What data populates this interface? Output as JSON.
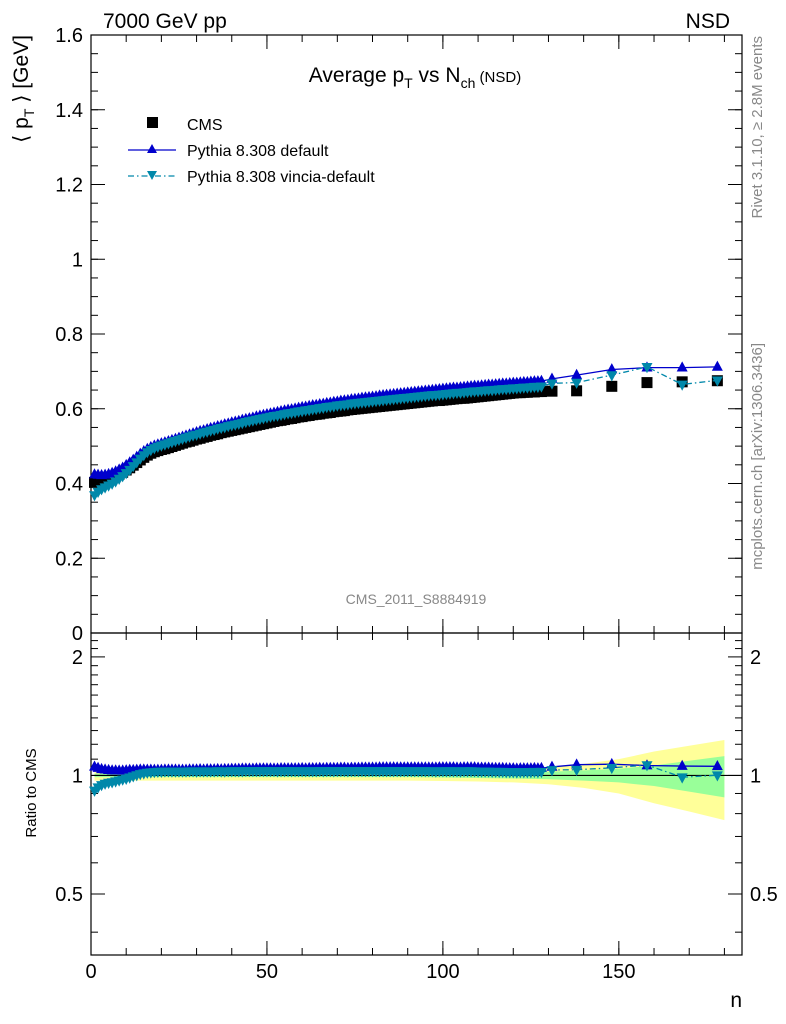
{
  "header": {
    "energy_label": "7000 GeV pp",
    "process_label": "NSD"
  },
  "side_labels": {
    "rivet": "Rivet 3.1.10, ≥ 2.8M events",
    "mcplots": "mcplots.cern.ch [arXiv:1306.3436]"
  },
  "chart_data": {
    "type": "scatter",
    "title": {
      "main": "Average p",
      "sub1": "T",
      "mid": " vs N",
      "sub2": "ch",
      "tail": " (NSD)"
    },
    "analysis_id": "CMS_2011_S8884919",
    "ylabel_main": {
      "pre": "⟨ p",
      "sub": "T",
      "post": " ⟩ [GeV]"
    },
    "ylabel_ratio": "Ratio to CMS",
    "xlabel": "n",
    "xlim": [
      0,
      185
    ],
    "ylim": [
      0,
      1.6
    ],
    "ratio_ylim": [
      0.35,
      2.3
    ],
    "x_ticks": [
      "0",
      "50",
      "100",
      "150"
    ],
    "y_ticks": [
      "0",
      "0.2",
      "0.4",
      "0.6",
      "0.8",
      "1",
      "1.2",
      "1.4",
      "1.6"
    ],
    "ratio_ticks": [
      "0.5",
      "1",
      "2"
    ],
    "legend_position": "top-left",
    "series": [
      {
        "name": "CMS",
        "marker": "square",
        "color": "#000000",
        "x": [
          1,
          2,
          3,
          4,
          5,
          6,
          7,
          8,
          9,
          10,
          11,
          12,
          13,
          14,
          15,
          16,
          17,
          18,
          19,
          20,
          21,
          22,
          23,
          24,
          25,
          26,
          27,
          28,
          29,
          30,
          31,
          32,
          33,
          34,
          35,
          36,
          37,
          38,
          39,
          40,
          41,
          42,
          43,
          44,
          45,
          46,
          47,
          48,
          49,
          50,
          51,
          52,
          53,
          54,
          55,
          56,
          57,
          58,
          59,
          60,
          61,
          62,
          63,
          64,
          65,
          66,
          67,
          68,
          69,
          70,
          71,
          72,
          73,
          74,
          75,
          76,
          77,
          78,
          79,
          80,
          81,
          82,
          83,
          84,
          85,
          86,
          87,
          88,
          89,
          90,
          91,
          92,
          93,
          94,
          95,
          96,
          97,
          98,
          99,
          100,
          101,
          102,
          103,
          104,
          105,
          106,
          107,
          108,
          109,
          110,
          111,
          112,
          113,
          114,
          115,
          116,
          117,
          118,
          119,
          120,
          121,
          122,
          123,
          124,
          125,
          126,
          127,
          128,
          131,
          138,
          148,
          158,
          168,
          178
        ],
        "y": [
          0.403,
          0.405,
          0.407,
          0.409,
          0.412,
          0.416,
          0.42,
          0.425,
          0.43,
          0.436,
          0.442,
          0.449,
          0.456,
          0.463,
          0.47,
          0.476,
          0.481,
          0.485,
          0.488,
          0.491,
          0.493,
          0.496,
          0.499,
          0.502,
          0.505,
          0.508,
          0.511,
          0.513,
          0.516,
          0.519,
          0.521,
          0.524,
          0.526,
          0.529,
          0.531,
          0.533,
          0.536,
          0.538,
          0.54,
          0.542,
          0.544,
          0.546,
          0.548,
          0.55,
          0.552,
          0.554,
          0.556,
          0.558,
          0.56,
          0.562,
          0.564,
          0.566,
          0.568,
          0.569,
          0.571,
          0.573,
          0.574,
          0.576,
          0.578,
          0.579,
          0.581,
          0.582,
          0.584,
          0.585,
          0.586,
          0.588,
          0.589,
          0.59,
          0.592,
          0.593,
          0.594,
          0.595,
          0.597,
          0.598,
          0.599,
          0.6,
          0.601,
          0.602,
          0.603,
          0.604,
          0.605,
          0.606,
          0.607,
          0.608,
          0.609,
          0.61,
          0.611,
          0.612,
          0.613,
          0.614,
          0.615,
          0.616,
          0.617,
          0.618,
          0.619,
          0.62,
          0.621,
          0.622,
          0.622,
          0.623,
          0.624,
          0.625,
          0.626,
          0.627,
          0.628,
          0.628,
          0.629,
          0.63,
          0.631,
          0.632,
          0.633,
          0.634,
          0.635,
          0.636,
          0.637,
          0.638,
          0.639,
          0.64,
          0.641,
          0.642,
          0.643,
          0.643,
          0.644,
          0.644,
          0.645,
          0.645,
          0.646,
          0.646,
          0.647,
          0.648,
          0.66,
          0.67,
          0.672,
          0.675
        ]
      },
      {
        "name": "Pythia 8.308 default",
        "marker": "triangle-up",
        "line": "solid",
        "color": "#0000cc",
        "x": [
          1,
          2,
          3,
          4,
          5,
          6,
          7,
          8,
          9,
          10,
          11,
          12,
          13,
          14,
          15,
          16,
          17,
          18,
          19,
          20,
          21,
          22,
          23,
          24,
          25,
          26,
          27,
          28,
          29,
          30,
          31,
          32,
          33,
          34,
          35,
          36,
          37,
          38,
          39,
          40,
          41,
          42,
          43,
          44,
          45,
          46,
          47,
          48,
          49,
          50,
          51,
          52,
          53,
          54,
          55,
          56,
          57,
          58,
          59,
          60,
          61,
          62,
          63,
          64,
          65,
          66,
          67,
          68,
          69,
          70,
          71,
          72,
          73,
          74,
          75,
          76,
          77,
          78,
          79,
          80,
          81,
          82,
          83,
          84,
          85,
          86,
          87,
          88,
          89,
          90,
          91,
          92,
          93,
          94,
          95,
          96,
          97,
          98,
          99,
          100,
          101,
          102,
          103,
          104,
          105,
          106,
          107,
          108,
          109,
          110,
          111,
          112,
          113,
          114,
          115,
          116,
          117,
          118,
          119,
          120,
          121,
          122,
          123,
          124,
          125,
          126,
          127,
          128,
          131,
          138,
          148,
          158,
          168,
          178
        ],
        "y": [
          0.424,
          0.423,
          0.422,
          0.423,
          0.425,
          0.428,
          0.432,
          0.437,
          0.442,
          0.449,
          0.456,
          0.463,
          0.471,
          0.479,
          0.486,
          0.492,
          0.497,
          0.501,
          0.504,
          0.507,
          0.51,
          0.513,
          0.516,
          0.519,
          0.522,
          0.525,
          0.528,
          0.531,
          0.534,
          0.537,
          0.54,
          0.542,
          0.545,
          0.548,
          0.55,
          0.553,
          0.555,
          0.558,
          0.56,
          0.563,
          0.565,
          0.567,
          0.57,
          0.572,
          0.574,
          0.576,
          0.579,
          0.581,
          0.583,
          0.585,
          0.587,
          0.589,
          0.591,
          0.593,
          0.595,
          0.597,
          0.598,
          0.6,
          0.602,
          0.604,
          0.605,
          0.607,
          0.609,
          0.61,
          0.612,
          0.613,
          0.615,
          0.616,
          0.618,
          0.619,
          0.621,
          0.622,
          0.623,
          0.625,
          0.626,
          0.627,
          0.629,
          0.63,
          0.631,
          0.632,
          0.633,
          0.635,
          0.636,
          0.637,
          0.638,
          0.639,
          0.64,
          0.641,
          0.642,
          0.643,
          0.644,
          0.645,
          0.646,
          0.647,
          0.648,
          0.649,
          0.65,
          0.651,
          0.652,
          0.653,
          0.654,
          0.655,
          0.656,
          0.656,
          0.657,
          0.658,
          0.659,
          0.66,
          0.661,
          0.661,
          0.662,
          0.663,
          0.664,
          0.664,
          0.665,
          0.666,
          0.667,
          0.667,
          0.668,
          0.669,
          0.669,
          0.67,
          0.671,
          0.671,
          0.672,
          0.673,
          0.673,
          0.674,
          0.68,
          0.69,
          0.705,
          0.71,
          0.71,
          0.712
        ]
      },
      {
        "name": "Pythia 8.308 vincia-default",
        "marker": "triangle-down",
        "line": "dash-dot",
        "color": "#0088aa",
        "x": [
          1,
          2,
          3,
          4,
          5,
          6,
          7,
          8,
          9,
          10,
          11,
          12,
          13,
          14,
          15,
          16,
          17,
          18,
          19,
          20,
          21,
          22,
          23,
          24,
          25,
          26,
          27,
          28,
          29,
          30,
          31,
          32,
          33,
          34,
          35,
          36,
          37,
          38,
          39,
          40,
          41,
          42,
          43,
          44,
          45,
          46,
          47,
          48,
          49,
          50,
          51,
          52,
          53,
          54,
          55,
          56,
          57,
          58,
          59,
          60,
          61,
          62,
          63,
          64,
          65,
          66,
          67,
          68,
          69,
          70,
          71,
          72,
          73,
          74,
          75,
          76,
          77,
          78,
          79,
          80,
          81,
          82,
          83,
          84,
          85,
          86,
          87,
          88,
          89,
          90,
          91,
          92,
          93,
          94,
          95,
          96,
          97,
          98,
          99,
          100,
          101,
          102,
          103,
          104,
          105,
          106,
          107,
          108,
          109,
          110,
          111,
          112,
          113,
          114,
          115,
          116,
          117,
          118,
          119,
          120,
          121,
          122,
          123,
          124,
          125,
          126,
          127,
          128,
          131,
          138,
          148,
          158,
          168,
          178
        ],
        "y": [
          0.369,
          0.378,
          0.385,
          0.39,
          0.395,
          0.4,
          0.406,
          0.413,
          0.42,
          0.428,
          0.437,
          0.447,
          0.457,
          0.467,
          0.476,
          0.484,
          0.49,
          0.495,
          0.499,
          0.502,
          0.505,
          0.508,
          0.511,
          0.514,
          0.517,
          0.52,
          0.523,
          0.526,
          0.529,
          0.531,
          0.534,
          0.537,
          0.539,
          0.542,
          0.544,
          0.547,
          0.549,
          0.551,
          0.554,
          0.556,
          0.558,
          0.56,
          0.562,
          0.565,
          0.567,
          0.569,
          0.571,
          0.573,
          0.575,
          0.577,
          0.579,
          0.581,
          0.582,
          0.584,
          0.586,
          0.588,
          0.589,
          0.591,
          0.593,
          0.594,
          0.596,
          0.597,
          0.599,
          0.6,
          0.602,
          0.603,
          0.605,
          0.606,
          0.607,
          0.609,
          0.61,
          0.611,
          0.612,
          0.614,
          0.615,
          0.616,
          0.617,
          0.618,
          0.619,
          0.62,
          0.621,
          0.622,
          0.623,
          0.624,
          0.625,
          0.626,
          0.627,
          0.628,
          0.629,
          0.63,
          0.631,
          0.632,
          0.633,
          0.634,
          0.635,
          0.636,
          0.637,
          0.637,
          0.638,
          0.639,
          0.64,
          0.641,
          0.642,
          0.643,
          0.643,
          0.644,
          0.645,
          0.646,
          0.647,
          0.647,
          0.648,
          0.649,
          0.65,
          0.65,
          0.651,
          0.652,
          0.653,
          0.653,
          0.654,
          0.655,
          0.655,
          0.656,
          0.657,
          0.657,
          0.658,
          0.659,
          0.659,
          0.66,
          0.668,
          0.67,
          0.69,
          0.712,
          0.665,
          0.676
        ]
      }
    ],
    "ratio_bands": {
      "x": [
        1,
        10,
        20,
        30,
        40,
        50,
        60,
        70,
        80,
        90,
        100,
        110,
        120,
        130,
        140,
        150,
        160,
        170,
        180
      ],
      "green_halfwidth": [
        0.01,
        0.01,
        0.01,
        0.01,
        0.01,
        0.01,
        0.01,
        0.01,
        0.01,
        0.01,
        0.012,
        0.015,
        0.018,
        0.022,
        0.03,
        0.04,
        0.06,
        0.09,
        0.12
      ],
      "yellow_halfwidth": [
        0.03,
        0.03,
        0.03,
        0.03,
        0.03,
        0.03,
        0.03,
        0.03,
        0.03,
        0.03,
        0.032,
        0.035,
        0.04,
        0.05,
        0.07,
        0.1,
        0.15,
        0.19,
        0.23
      ]
    }
  }
}
